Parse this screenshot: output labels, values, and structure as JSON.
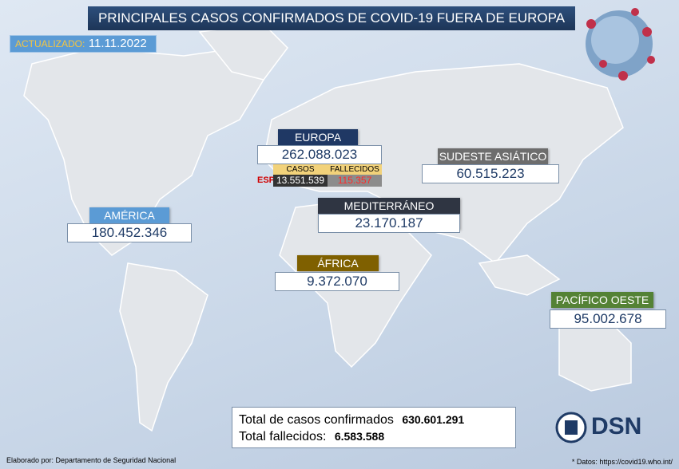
{
  "header": {
    "title": "PRINCIPALES CASOS CONFIRMADOS DE COVID-19 FUERA DE EUROPA",
    "updated_label": "ACTUALIZADO:",
    "updated_date": "11.11.2022"
  },
  "regions": [
    {
      "name": "EUROPA",
      "value": "262.088.023"
    },
    {
      "name": "SUDESTE ASIÁTICO",
      "value": "60.515.223"
    },
    {
      "name": "MEDITERRÁNEO ORIENTAL",
      "value": "23.170.187"
    },
    {
      "name": "AMÉRICA",
      "value": "180.452.346"
    },
    {
      "name": "ÁFRICA",
      "value": "9.372.070"
    },
    {
      "name": "PACÍFICO OESTE",
      "value": "95.002.678"
    }
  ],
  "spain": {
    "label": "ESP.",
    "cases_label": "CASOS",
    "deaths_label": "FALLECIDOS",
    "cases": "13.551.539",
    "deaths": "115.357"
  },
  "totals": {
    "cases_label": "Total de casos confirmados",
    "cases": "630.601.291",
    "deaths_label": "Total fallecidos:",
    "deaths": "6.583.588"
  },
  "logo": {
    "text": "DSN"
  },
  "footer": {
    "credit": "Elaborado por: Departamento de Seguridad Nacional",
    "source": "* Datos: https://covid19.who.int/"
  }
}
